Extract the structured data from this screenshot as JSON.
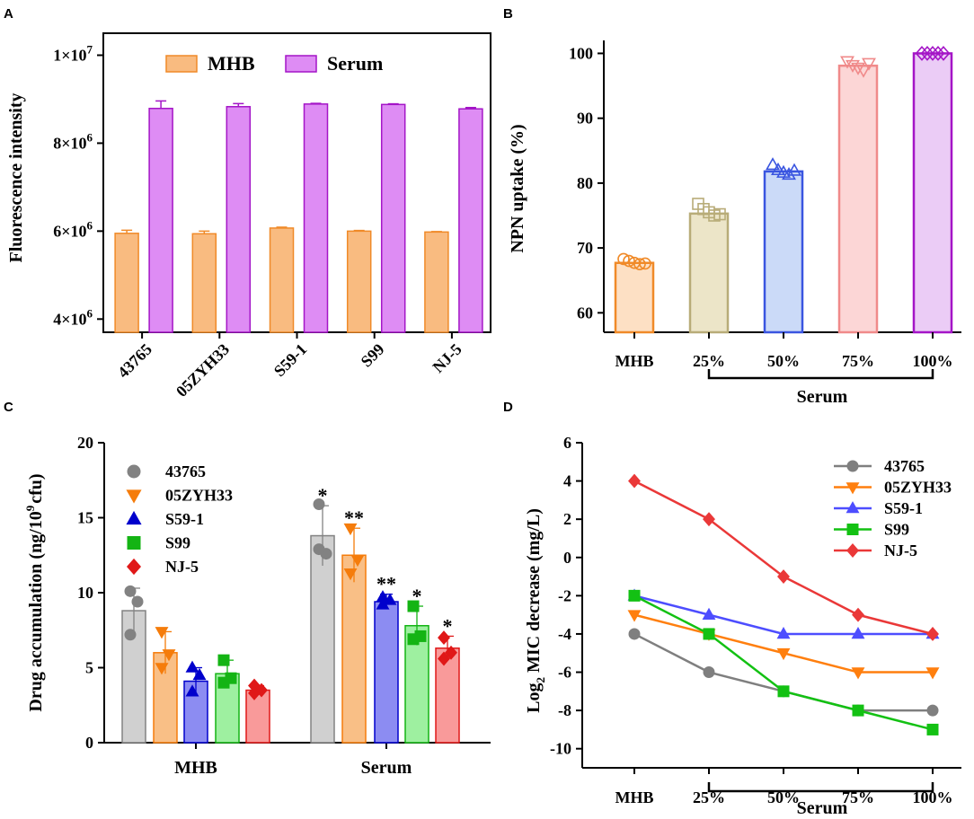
{
  "chart_data": [
    {
      "panel": "A",
      "type": "bar",
      "title": "",
      "xlabel": "",
      "ylabel": "Fluorescence intensity",
      "categories": [
        "43765",
        "05ZYH33",
        "S59-1",
        "S99",
        "NJ-5"
      ],
      "series": [
        {
          "name": "MHB",
          "values": [
            5950000,
            5940000,
            6070000,
            6000000,
            5980000
          ],
          "errors": [
            70000,
            60000,
            20000,
            15000,
            10000
          ],
          "color": "#f9bb80",
          "edge": "#f08a28"
        },
        {
          "name": "Serum",
          "values": [
            8790000,
            8830000,
            8890000,
            8880000,
            8780000
          ],
          "errors": [
            170000,
            70000,
            15000,
            15000,
            30000
          ],
          "color": "#de8cf4",
          "edge": "#a415c7"
        }
      ],
      "ylim": [
        3700000,
        10500000
      ],
      "yticks": [
        4000000,
        6000000,
        8000000,
        10000000
      ],
      "ytick_labels": [
        {
          "base": "4×10",
          "exp": "6"
        },
        {
          "base": "6×10",
          "exp": "6"
        },
        {
          "base": "8×10",
          "exp": "6"
        },
        {
          "base": "1×10",
          "exp": "7"
        }
      ],
      "legend": "top-center"
    },
    {
      "panel": "B",
      "type": "bar",
      "title": "",
      "xlabel": "Serum",
      "ylabel": "NPN uptake (%)",
      "categories": [
        "MHB",
        "25%",
        "50%",
        "75%",
        "100%"
      ],
      "values": [
        67.7,
        75.3,
        81.8,
        98.1,
        100
      ],
      "points": [
        [
          68.3,
          68.0,
          67.7,
          67.5,
          67.6
        ],
        [
          76.8,
          76.0,
          75.5,
          75.0,
          75.2
        ],
        [
          82.8,
          82.0,
          81.6,
          81.3,
          81.9
        ],
        [
          98.8,
          98.2,
          97.8,
          97.4,
          98.5
        ],
        [
          100,
          100,
          100,
          100,
          100
        ]
      ],
      "colors": [
        "#f08a28",
        "#b8ac78",
        "#3a55e0",
        "#f08a8a",
        "#a415c7"
      ],
      "fills": [
        "#fde0c4",
        "#ece5c8",
        "#cbdaf8",
        "#fcd6d6",
        "#ebccf6"
      ],
      "markers": [
        "circle",
        "square",
        "triangle-up",
        "triangle-down",
        "diamond"
      ],
      "ylim": [
        57,
        102
      ],
      "yticks": [
        60,
        70,
        80,
        90,
        100
      ],
      "bracket_label": "Serum"
    },
    {
      "panel": "C",
      "type": "bar",
      "title": "",
      "xlabel": "",
      "ylabel": "Drug accumulation (ng/10^9 cfu)",
      "categories": [
        "MHB",
        "Serum"
      ],
      "series": [
        {
          "name": "43765",
          "values": [
            8.8,
            13.8
          ],
          "sd": [
            1.5,
            2.0
          ],
          "points": [
            [
              10.1,
              9.4,
              7.2
            ],
            [
              15.9,
              12.6,
              12.9
            ]
          ],
          "color": "#828282",
          "fill": "#d0d0d0",
          "marker": "circle"
        },
        {
          "name": "05ZYH33",
          "values": [
            6.0,
            12.5
          ],
          "sd": [
            1.4,
            1.8
          ],
          "points": [
            [
              7.4,
              5.9,
              5.0
            ],
            [
              14.3,
              12.2,
              11.3
            ]
          ],
          "color": "#f57c0b",
          "fill": "#f9bf86",
          "marker": "triangle-down"
        },
        {
          "name": "S59-1",
          "values": [
            4.1,
            9.4
          ],
          "sd": [
            0.9,
            0.5
          ],
          "points": [
            [
              5.0,
              4.5,
              3.4
            ],
            [
              9.7,
              9.5,
              9.2
            ]
          ],
          "color": "#0000cc",
          "fill": "#8c8cf2",
          "marker": "triangle-up"
        },
        {
          "name": "S99",
          "values": [
            4.6,
            7.8
          ],
          "sd": [
            0.9,
            1.3
          ],
          "points": [
            [
              5.5,
              4.3,
              4.0
            ],
            [
              9.1,
              7.1,
              6.9
            ]
          ],
          "color": "#14b414",
          "fill": "#9ef0a0",
          "marker": "square"
        },
        {
          "name": "NJ-5",
          "values": [
            3.5,
            6.3
          ],
          "sd": [
            0.3,
            0.8
          ],
          "points": [
            [
              3.8,
              3.5,
              3.3
            ],
            [
              7.0,
              6.0,
              5.6
            ]
          ],
          "color": "#e01818",
          "fill": "#f99a9a",
          "marker": "diamond"
        }
      ],
      "significance": [
        "*",
        "**",
        "**",
        "*",
        "*"
      ],
      "ylim": [
        0,
        20
      ],
      "yticks": [
        0,
        5,
        10,
        15,
        20
      ],
      "legend": "top-left"
    },
    {
      "panel": "D",
      "type": "line",
      "title": "",
      "xlabel": "Serum",
      "ylabel": "Log2 MIC decrease (mg/L)",
      "categories": [
        "MHB",
        "25%",
        "50%",
        "75%",
        "100%"
      ],
      "series": [
        {
          "name": "43765",
          "values": [
            -4,
            -6,
            -7,
            -8,
            -8
          ],
          "color": "#7f7f7f",
          "marker": "circle"
        },
        {
          "name": "05ZYH33",
          "values": [
            -3,
            -4,
            -5,
            -6,
            -6
          ],
          "color": "#ff7f0e",
          "marker": "triangle-down"
        },
        {
          "name": "S59-1",
          "values": [
            -2,
            -3,
            -4,
            -4,
            -4
          ],
          "color": "#4d4dff",
          "marker": "triangle-up"
        },
        {
          "name": "S99",
          "values": [
            -2,
            -4,
            -7,
            -8,
            -9
          ],
          "color": "#13c113",
          "marker": "square"
        },
        {
          "name": "NJ-5",
          "values": [
            4,
            2,
            -1,
            -3,
            -4
          ],
          "color": "#ea3838",
          "marker": "diamond"
        }
      ],
      "ylim": [
        -11,
        6
      ],
      "yticks": [
        -10,
        -8,
        -6,
        -4,
        -2,
        0,
        2,
        4,
        6
      ],
      "legend": "top-right",
      "bracket_label": "Serum"
    }
  ],
  "panels": {
    "a": "A",
    "b": "B",
    "c": "C",
    "d": "D"
  },
  "labels": {
    "a_ylabel": "Fluorescence intensity",
    "b_ylabel": "NPN uptake (%)",
    "b_serum": "Serum",
    "c_ylabel_prefix": "Drug accumulation (ng/10",
    "c_ylabel_sup": "9",
    "c_ylabel_suffix": "cfu)",
    "d_ylabel_prefix": "Log",
    "d_ylabel_sub": "2",
    "d_ylabel_suffix": " MIC decrease (mg/L)",
    "d_serum": "Serum"
  }
}
